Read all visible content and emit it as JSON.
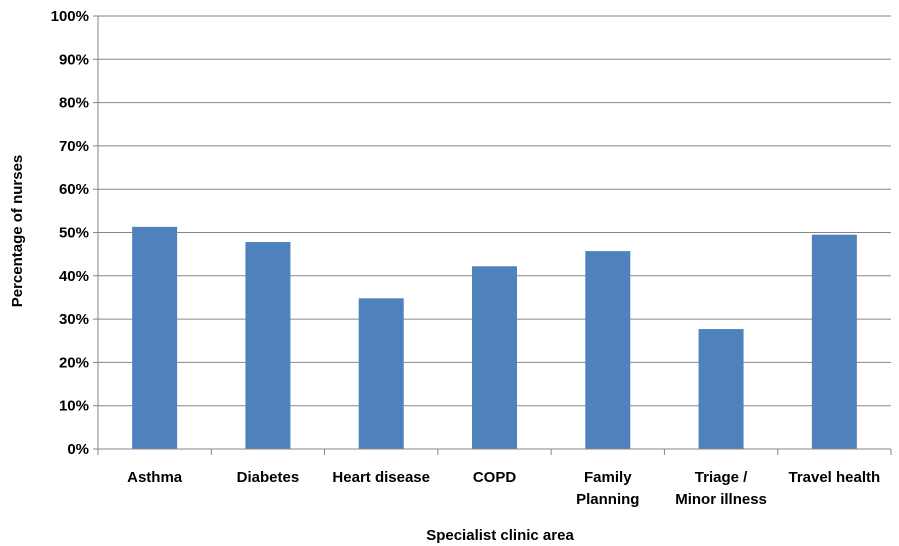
{
  "chart_data": {
    "type": "bar",
    "categories": [
      [
        "Asthma"
      ],
      [
        "Diabetes"
      ],
      [
        "Heart disease"
      ],
      [
        "COPD"
      ],
      [
        "Family",
        "Planning"
      ],
      [
        "Triage /",
        "Minor illness"
      ],
      [
        "Travel health"
      ]
    ],
    "values": [
      51.3,
      47.8,
      34.8,
      42.2,
      45.7,
      27.7,
      49.5
    ],
    "title": "",
    "xlabel": "Specialist clinic area",
    "ylabel": "Percentage of nurses",
    "ylim": [
      0,
      100
    ],
    "yticks": [
      "0%",
      "10%",
      "20%",
      "30%",
      "40%",
      "50%",
      "60%",
      "70%",
      "80%",
      "90%",
      "100%"
    ],
    "grid": true,
    "legend": "none",
    "colors": {
      "bar": "#4f81bd",
      "grid": "#868686",
      "axis": "#868686"
    }
  }
}
